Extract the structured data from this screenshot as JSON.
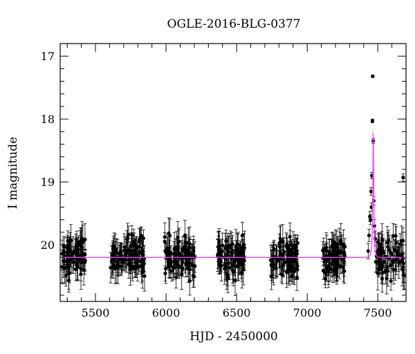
{
  "chart_data": {
    "type": "scatter",
    "title": "OGLE-2016-BLG-0377",
    "xlabel": "HJD - 2450000",
    "ylabel": "I magnitude",
    "xlim": [
      5250,
      7700
    ],
    "ylim": [
      20.9,
      16.8
    ],
    "y_inverted": true,
    "grid": false,
    "legend": "none",
    "x_ticks": [
      5500,
      6000,
      6500,
      7000,
      7500
    ],
    "y_ticks": [
      17,
      18,
      19,
      20
    ],
    "colors": {
      "points": "#000000",
      "model": "#ff33ff"
    },
    "model": {
      "name": "",
      "baseline": 20.2,
      "t0": 7468,
      "peak_mag": 18.05,
      "tE_days": 9
    },
    "seasons": [
      {
        "start": 5262,
        "end": 5430,
        "mean": 20.18,
        "n": 70
      },
      {
        "start": 5605,
        "end": 5855,
        "mean": 20.18,
        "n": 100
      },
      {
        "start": 5990,
        "end": 6205,
        "mean": 20.2,
        "n": 95
      },
      {
        "start": 6365,
        "end": 6560,
        "mean": 20.2,
        "n": 90
      },
      {
        "start": 6740,
        "end": 6935,
        "mean": 20.2,
        "n": 90
      },
      {
        "start": 7110,
        "end": 7270,
        "mean": 20.2,
        "n": 80
      },
      {
        "start": 7485,
        "end": 7690,
        "mean": 20.2,
        "n": 70
      }
    ],
    "highlight_points": [
      {
        "x": 7432,
        "y": 20.1,
        "err": 0.12
      },
      {
        "x": 7438,
        "y": 19.85,
        "err": 0.1
      },
      {
        "x": 7444,
        "y": 19.55,
        "err": 0.08
      },
      {
        "x": 7448,
        "y": 19.6,
        "err": 0.08
      },
      {
        "x": 7452,
        "y": 19.15,
        "err": 0.06
      },
      {
        "x": 7455,
        "y": 19.4,
        "err": 0.07
      },
      {
        "x": 7458,
        "y": 18.9,
        "err": 0.05
      },
      {
        "x": 7462,
        "y": 18.03,
        "err": 0.03
      },
      {
        "x": 7464,
        "y": 17.32,
        "err": 0.02
      },
      {
        "x": 7468,
        "y": 18.35,
        "err": 0.04
      },
      {
        "x": 7472,
        "y": 19.3,
        "err": 0.07
      },
      {
        "x": 7476,
        "y": 19.7,
        "err": 0.1
      },
      {
        "x": 7482,
        "y": 19.9,
        "err": 0.12
      },
      {
        "x": 7680,
        "y": 18.93,
        "err": 0.06
      }
    ]
  }
}
